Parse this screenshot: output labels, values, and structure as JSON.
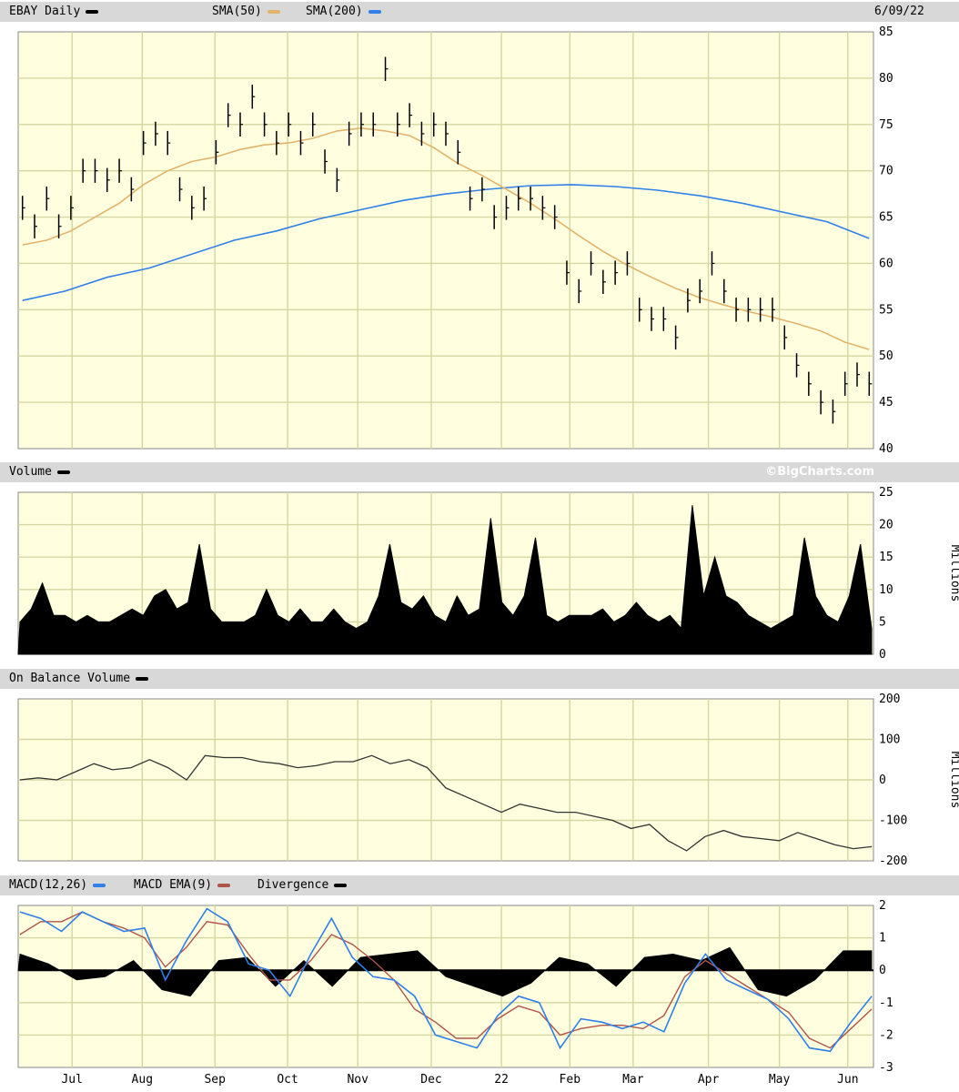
{
  "header": {
    "symbol_label": "EBAY Daily",
    "sma50_label": "SMA(50)",
    "sma200_label": "SMA(200)",
    "date": "6/09/22",
    "volume_label": "Volume",
    "copyright": "©BigCharts.com",
    "obv_label": "On Balance Volume",
    "macd_label": "MACD(12,26)",
    "macd_ema_label": "MACD EMA(9)",
    "divergence_label": "Divergence"
  },
  "colors": {
    "panel_bg": "#ffffe0",
    "grid": "#d6d6a0",
    "header_bg": "#d8d8d8",
    "price": "#000000",
    "sma50": "#e2b46a",
    "sma200": "#2f80e8",
    "macd": "#2f80e8",
    "macd_ema": "#b0544a",
    "obv": "#333333"
  },
  "chart_data": [
    {
      "type": "line",
      "panel": "price",
      "x_axis": {
        "labels": [
          "Jul",
          "Aug",
          "Sep",
          "Oct",
          "Nov",
          "Dec",
          "22",
          "Feb",
          "Mar",
          "Apr",
          "May",
          "Jun"
        ],
        "range": [
          "2021-06-09",
          "2022-06-09"
        ]
      },
      "y_axis": {
        "ticks": [
          "85",
          "80",
          "75",
          "70",
          "65",
          "60",
          "55",
          "50",
          "45",
          "40"
        ],
        "ylim": [
          40,
          85
        ]
      },
      "grid": true,
      "series": [
        {
          "name": "EBAY Daily",
          "kind": "ohlc-bars",
          "values": [
            66,
            64,
            67,
            64,
            66,
            70,
            70,
            69,
            70,
            68,
            73,
            74,
            73,
            68,
            66,
            67,
            72,
            76,
            75,
            78,
            75,
            73,
            75,
            73,
            75,
            71,
            69,
            74,
            75,
            75,
            81,
            75,
            76,
            74,
            75,
            74,
            72,
            67,
            68,
            65,
            66,
            67,
            67,
            66,
            65,
            59,
            57,
            60,
            58,
            59,
            60,
            55,
            54,
            54,
            52,
            56,
            57,
            60,
            57,
            55,
            55,
            55,
            55,
            52,
            49,
            47,
            45,
            44,
            47,
            48,
            47
          ]
        },
        {
          "name": "SMA(50)",
          "values": [
            62,
            62.5,
            63.5,
            65,
            66.5,
            68.5,
            70,
            71,
            71.5,
            72.3,
            72.8,
            73,
            73.5,
            74.3,
            74.6,
            74.3,
            73.8,
            72.5,
            70.8,
            69.5,
            68,
            66.5,
            64.8,
            63,
            61.3,
            59.8,
            58.5,
            57.3,
            56.3,
            55.5,
            54.8,
            54.2,
            53.5,
            52.7,
            51.5,
            50.7
          ]
        },
        {
          "name": "SMA(200)",
          "values": [
            56,
            57,
            58.5,
            59.5,
            61,
            62.5,
            63.5,
            64.8,
            65.8,
            66.8,
            67.5,
            68,
            68.4,
            68.5,
            68.3,
            67.9,
            67.3,
            66.5,
            65.5,
            64.5,
            62.7
          ]
        }
      ]
    },
    {
      "type": "bar",
      "panel": "volume",
      "y_axis": {
        "ticks": [
          "25",
          "20",
          "15",
          "10",
          "5",
          "0"
        ],
        "ylim": [
          0,
          25
        ],
        "label": "Millions"
      },
      "series": [
        {
          "name": "Volume",
          "values": [
            5,
            7,
            11,
            6,
            6,
            5,
            6,
            5,
            5,
            6,
            7,
            6,
            9,
            10,
            7,
            8,
            17,
            7,
            5,
            5,
            5,
            6,
            10,
            6,
            5,
            7,
            5,
            5,
            7,
            5,
            4,
            5,
            9,
            17,
            8,
            7,
            9,
            6,
            5,
            9,
            6,
            7,
            21,
            8,
            6,
            9,
            18,
            6,
            5,
            6,
            6,
            6,
            7,
            5,
            6,
            8,
            6,
            5,
            6,
            4,
            23,
            9,
            15,
            9,
            8,
            6,
            5,
            4,
            5,
            6,
            18,
            9,
            6,
            5,
            9,
            17,
            4
          ]
        }
      ]
    },
    {
      "type": "line",
      "panel": "on-balance-volume",
      "y_axis": {
        "ticks": [
          "200",
          "100",
          "0",
          "-100",
          "-200"
        ],
        "ylim": [
          -200,
          200
        ],
        "label": "Millions"
      },
      "series": [
        {
          "name": "On Balance Volume",
          "values": [
            0,
            5,
            0,
            20,
            40,
            25,
            30,
            50,
            30,
            0,
            60,
            55,
            55,
            45,
            40,
            30,
            35,
            45,
            45,
            60,
            40,
            50,
            30,
            -20,
            -40,
            -60,
            -80,
            -60,
            -70,
            -80,
            -80,
            -90,
            -100,
            -120,
            -110,
            -150,
            -175,
            -140,
            -125,
            -140,
            -145,
            -150,
            -130,
            -145,
            -160,
            -170,
            -165
          ]
        }
      ]
    },
    {
      "type": "line",
      "panel": "macd",
      "y_axis": {
        "ticks": [
          "2",
          "1",
          "0",
          "-1",
          "-2",
          "-3"
        ],
        "ylim": [
          -3,
          2
        ]
      },
      "series": [
        {
          "name": "MACD(12,26)",
          "values": [
            1.8,
            1.6,
            1.2,
            1.8,
            1.5,
            1.2,
            1.3,
            -0.3,
            0.9,
            1.9,
            1.5,
            0.2,
            0.0,
            -0.8,
            0.5,
            1.6,
            0.4,
            -0.2,
            -0.3,
            -0.8,
            -2.0,
            -2.2,
            -2.4,
            -1.4,
            -0.8,
            -1.0,
            -2.4,
            -1.5,
            -1.6,
            -1.8,
            -1.6,
            -1.9,
            -0.4,
            0.5,
            -0.3,
            -0.6,
            -0.9,
            -1.5,
            -2.4,
            -2.5,
            -1.6,
            -0.8
          ]
        },
        {
          "name": "MACD EMA(9)",
          "values": [
            1.1,
            1.5,
            1.5,
            1.8,
            1.5,
            1.3,
            1.0,
            0.1,
            0.7,
            1.5,
            1.4,
            0.5,
            -0.3,
            -0.3,
            0.3,
            1.1,
            0.8,
            0.3,
            -0.3,
            -1.2,
            -1.6,
            -2.1,
            -2.1,
            -1.5,
            -1.1,
            -1.3,
            -2.0,
            -1.8,
            -1.7,
            -1.7,
            -1.8,
            -1.4,
            -0.2,
            0.3,
            -0.1,
            -0.5,
            -0.9,
            -1.3,
            -2.1,
            -2.4,
            -1.8,
            -1.2
          ]
        },
        {
          "name": "Divergence",
          "values": [
            0.5,
            0.2,
            -0.3,
            -0.2,
            0.3,
            -0.6,
            -0.8,
            0.3,
            0.4,
            -0.5,
            0.3,
            -0.5,
            0.4,
            0.5,
            0.6,
            -0.2,
            -0.5,
            -0.8,
            -0.4,
            0.4,
            0.2,
            -0.5,
            0.4,
            0.5,
            0.3,
            0.7,
            -0.6,
            -0.8,
            -0.3,
            0.6,
            0.6
          ]
        }
      ]
    }
  ]
}
